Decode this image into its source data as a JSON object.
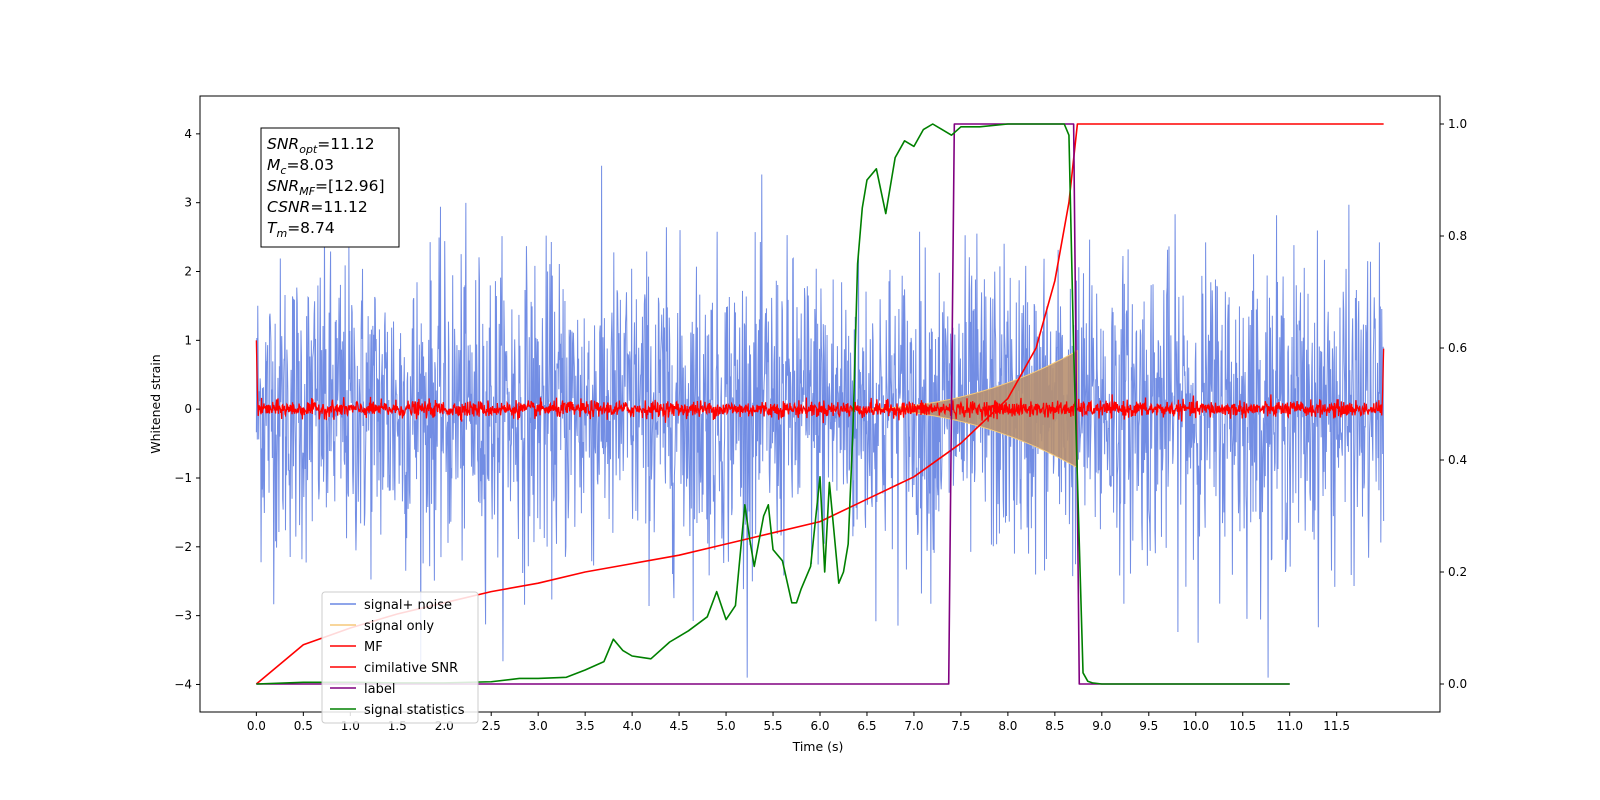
{
  "chart_data": {
    "type": "line",
    "xlabel": "Time (s)",
    "ylabel": "Whitened strain",
    "ylabel_right": "",
    "xlim": [
      -0.6,
      12.6
    ],
    "ylim": [
      -4.4,
      4.55
    ],
    "ylim_right": [
      -0.05,
      1.05
    ],
    "x_ticks": [
      "0.0",
      "0.5",
      "1.0",
      "1.5",
      "2.0",
      "2.5",
      "3.0",
      "3.5",
      "4.0",
      "4.5",
      "5.0",
      "5.5",
      "6.0",
      "6.5",
      "7.0",
      "7.5",
      "8.0",
      "8.5",
      "9.0",
      "9.5",
      "10.0",
      "10.5",
      "11.0",
      "11.5"
    ],
    "y_ticks_left": [
      "4",
      "3",
      "2",
      "1",
      "0",
      "−1",
      "−2",
      "−3",
      "−4"
    ],
    "y_ticks_right": [
      "1.0",
      "0.8",
      "0.6",
      "0.4",
      "0.2",
      "0.0"
    ],
    "grid": false,
    "legend_position": "lower-left",
    "annotation_box": [
      {
        "base": "SNR",
        "sub": "opt",
        "rest": "=11.12"
      },
      {
        "base": "M",
        "sub": "c",
        "rest": "=8.03"
      },
      {
        "base": "SNR",
        "sub": "MF",
        "rest": "=[12.96]"
      },
      {
        "base": "CSNR",
        "sub": "",
        "rest": "=11.12"
      },
      {
        "base": "T",
        "sub": "m",
        "rest": "=8.74"
      }
    ],
    "series": [
      {
        "name": "signal+ noise",
        "axis": "left",
        "color": "#6a87e3",
        "style": "noise band",
        "x_range": [
          0,
          12
        ],
        "typical_amplitude": 1.5,
        "peak_max": 4.2,
        "peak_min": -3.9
      },
      {
        "name": "signal only",
        "axis": "left",
        "color": "#f5c97a",
        "style": "chirp envelope",
        "start": 6.3,
        "end": 8.74,
        "max_amplitude": 0.85
      },
      {
        "name": "MF",
        "axis": "left",
        "color": "#ff0000",
        "style": "noise band",
        "x_range": [
          0,
          12
        ],
        "typical_amplitude": 0.12,
        "edge_value": 1.0
      },
      {
        "name": "cimilative SNR",
        "axis": "right",
        "color": "#ff0000",
        "x": [
          0.0,
          0.5,
          1.0,
          1.5,
          2.0,
          2.5,
          3.0,
          3.5,
          4.0,
          4.5,
          5.0,
          5.5,
          6.0,
          6.5,
          7.0,
          7.5,
          8.0,
          8.3,
          8.5,
          8.65,
          8.74,
          12.0
        ],
        "values": [
          0.0,
          0.07,
          0.1,
          0.125,
          0.145,
          0.165,
          0.18,
          0.2,
          0.215,
          0.23,
          0.25,
          0.27,
          0.29,
          0.33,
          0.37,
          0.43,
          0.51,
          0.6,
          0.72,
          0.86,
          1.0,
          1.0
        ]
      },
      {
        "name": "label",
        "axis": "right",
        "color": "#800080",
        "x": [
          0.0,
          7.37,
          7.43,
          8.7,
          8.76,
          11.0
        ],
        "values": [
          0,
          0,
          1,
          1,
          0,
          0
        ]
      },
      {
        "name": "signal statistics",
        "axis": "right",
        "color": "#008000",
        "x": [
          0.0,
          0.5,
          1.0,
          1.5,
          2.0,
          2.5,
          2.8,
          3.0,
          3.3,
          3.5,
          3.7,
          3.8,
          3.9,
          4.0,
          4.2,
          4.4,
          4.5,
          4.6,
          4.8,
          4.9,
          5.0,
          5.1,
          5.2,
          5.25,
          5.3,
          5.4,
          5.45,
          5.5,
          5.6,
          5.7,
          5.75,
          5.8,
          5.9,
          6.0,
          6.05,
          6.1,
          6.2,
          6.25,
          6.3,
          6.35,
          6.4,
          6.45,
          6.5,
          6.6,
          6.7,
          6.8,
          6.9,
          7.0,
          7.1,
          7.2,
          7.3,
          7.4,
          7.5,
          7.7,
          8.0,
          8.3,
          8.6,
          8.65,
          8.7,
          8.8,
          8.85,
          8.9,
          9.0,
          10.0,
          11.0
        ],
        "values": [
          0.0,
          0.003,
          0.003,
          0.002,
          0.002,
          0.004,
          0.01,
          0.01,
          0.012,
          0.025,
          0.04,
          0.08,
          0.06,
          0.05,
          0.045,
          0.075,
          0.085,
          0.095,
          0.12,
          0.165,
          0.115,
          0.14,
          0.32,
          0.26,
          0.21,
          0.3,
          0.32,
          0.24,
          0.22,
          0.145,
          0.145,
          0.17,
          0.21,
          0.37,
          0.2,
          0.36,
          0.18,
          0.2,
          0.25,
          0.45,
          0.75,
          0.85,
          0.9,
          0.92,
          0.84,
          0.94,
          0.97,
          0.96,
          0.99,
          1.0,
          0.99,
          0.98,
          0.995,
          0.995,
          1.0,
          1.0,
          1.0,
          0.98,
          0.6,
          0.02,
          0.005,
          0.002,
          0.0,
          0.0,
          0.0
        ]
      }
    ]
  }
}
